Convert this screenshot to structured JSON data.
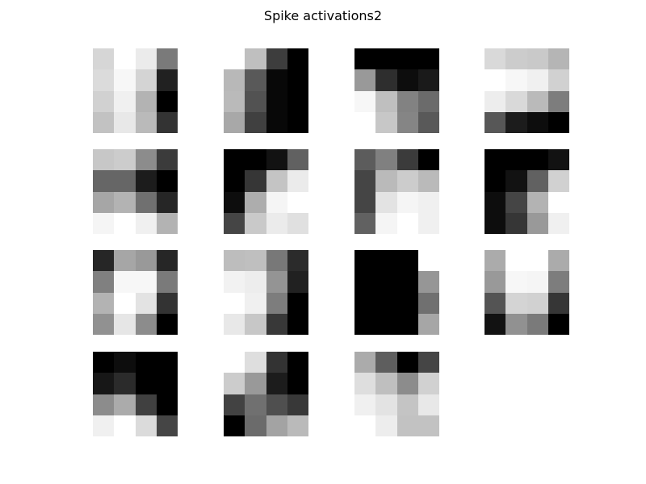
{
  "chart_data": {
    "type": "heatmap",
    "title": "Spike activations2",
    "colormap": "grayscale",
    "grid": false,
    "show_axes": false,
    "panel_rows": 4,
    "panel_cols": 4,
    "panels": [
      {
        "values": [
          [
            0.84,
            1.0,
            0.92,
            0.48
          ],
          [
            0.86,
            0.97,
            0.83,
            0.13
          ],
          [
            0.82,
            0.94,
            0.7,
            0.0
          ],
          [
            0.76,
            0.91,
            0.73,
            0.2
          ]
        ]
      },
      {
        "values": [
          [
            1.0,
            0.75,
            0.24,
            0.0
          ],
          [
            0.72,
            0.35,
            0.03,
            0.0
          ],
          [
            0.73,
            0.32,
            0.03,
            0.0
          ],
          [
            0.66,
            0.25,
            0.03,
            0.0
          ]
        ]
      },
      {
        "values": [
          [
            0.0,
            0.0,
            0.0,
            0.0
          ],
          [
            0.6,
            0.18,
            0.05,
            0.1
          ],
          [
            0.97,
            0.75,
            0.51,
            0.42
          ],
          [
            1.0,
            0.78,
            0.52,
            0.35
          ]
        ]
      },
      {
        "values": [
          [
            0.85,
            0.8,
            0.79,
            0.71
          ],
          [
            1.0,
            0.97,
            0.94,
            0.82
          ],
          [
            0.93,
            0.85,
            0.73,
            0.49
          ],
          [
            0.34,
            0.11,
            0.05,
            0.0
          ]
        ]
      },
      {
        "values": [
          [
            0.78,
            0.8,
            0.55,
            0.23
          ],
          [
            0.4,
            0.4,
            0.11,
            0.0
          ],
          [
            0.65,
            0.7,
            0.44,
            0.15
          ],
          [
            0.96,
            1.0,
            0.94,
            0.7
          ]
        ]
      },
      {
        "values": [
          [
            0.0,
            0.0,
            0.07,
            0.38
          ],
          [
            0.0,
            0.21,
            0.77,
            0.92
          ],
          [
            0.05,
            0.68,
            0.96,
            1.0
          ],
          [
            0.27,
            0.79,
            0.92,
            0.88
          ]
        ]
      },
      {
        "values": [
          [
            0.36,
            0.5,
            0.23,
            0.0
          ],
          [
            0.27,
            0.73,
            0.8,
            0.73
          ],
          [
            0.27,
            0.89,
            0.96,
            0.94
          ],
          [
            0.38,
            0.96,
            1.0,
            0.94
          ]
        ]
      },
      {
        "values": [
          [
            0.0,
            0.0,
            0.0,
            0.07
          ],
          [
            0.0,
            0.07,
            0.38,
            0.82
          ],
          [
            0.05,
            0.27,
            0.7,
            1.0
          ],
          [
            0.05,
            0.21,
            0.6,
            0.94
          ]
        ]
      },
      {
        "values": [
          [
            0.15,
            0.65,
            0.6,
            0.15
          ],
          [
            0.5,
            0.97,
            0.97,
            0.48
          ],
          [
            0.7,
            1.0,
            0.89,
            0.2
          ],
          [
            0.57,
            0.9,
            0.55,
            0.0
          ]
        ]
      },
      {
        "values": [
          [
            0.74,
            0.75,
            0.47,
            0.17
          ],
          [
            0.95,
            0.93,
            0.58,
            0.13
          ],
          [
            1.0,
            0.94,
            0.49,
            0.0
          ],
          [
            0.91,
            0.78,
            0.22,
            0.0
          ]
        ]
      },
      {
        "values": [
          [
            0.0,
            0.0,
            0.0,
            1.0
          ],
          [
            0.0,
            0.0,
            0.0,
            0.59
          ],
          [
            0.0,
            0.0,
            0.0,
            0.44
          ],
          [
            0.0,
            0.0,
            0.0,
            0.65
          ]
        ]
      },
      {
        "values": [
          [
            0.67,
            1.0,
            1.0,
            0.67
          ],
          [
            0.6,
            0.97,
            0.96,
            0.49
          ],
          [
            0.33,
            0.83,
            0.82,
            0.21
          ],
          [
            0.07,
            0.57,
            0.48,
            0.0
          ]
        ]
      },
      {
        "values": [
          [
            0.0,
            0.05,
            0.0,
            0.0
          ],
          [
            0.09,
            0.17,
            0.0,
            0.0
          ],
          [
            0.55,
            0.67,
            0.25,
            0.0
          ],
          [
            0.94,
            1.0,
            0.86,
            0.27
          ]
        ]
      },
      {
        "values": [
          [
            1.0,
            0.87,
            0.2,
            0.0
          ],
          [
            0.8,
            0.6,
            0.11,
            0.0
          ],
          [
            0.26,
            0.44,
            0.31,
            0.22
          ],
          [
            0.0,
            0.42,
            0.64,
            0.73
          ]
        ]
      },
      {
        "values": [
          [
            0.67,
            0.37,
            0.0,
            0.27
          ],
          [
            0.87,
            0.75,
            0.55,
            0.82
          ],
          [
            0.94,
            0.89,
            0.77,
            0.91
          ],
          [
            1.0,
            0.93,
            0.76,
            0.76
          ]
        ]
      }
    ]
  }
}
